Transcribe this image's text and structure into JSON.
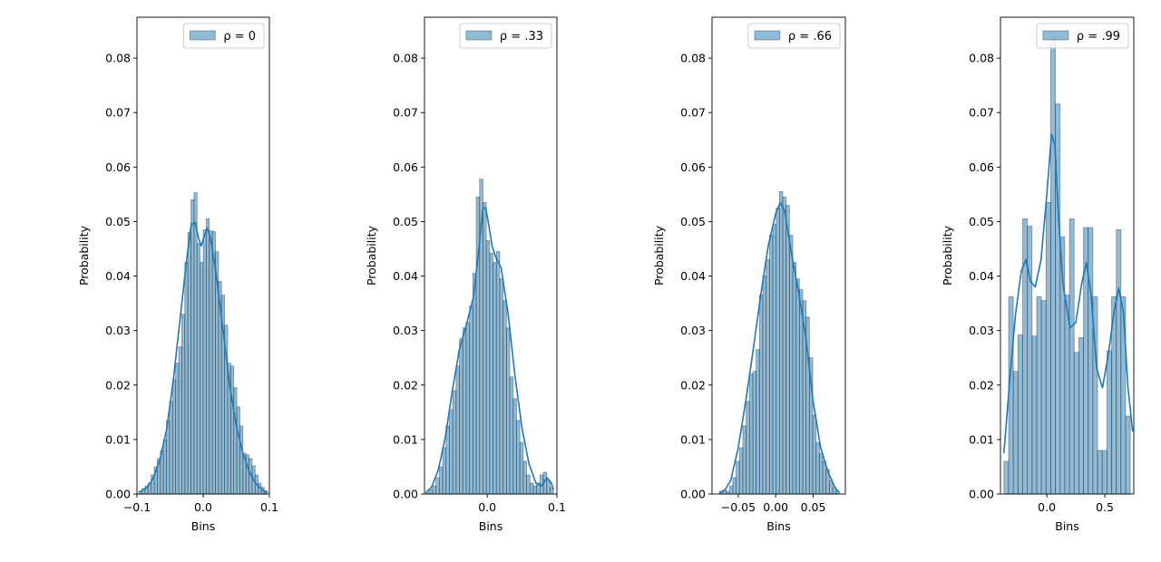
{
  "chart_data": [
    {
      "type": "bar",
      "legend_label": "ρ = 0",
      "legend_placement": "top-right",
      "xlabel": "Bins",
      "ylabel": "Probability",
      "grid": false,
      "xlim": [
        -0.1,
        0.1
      ],
      "ylim": [
        0,
        0.0875
      ],
      "xticks": [
        -0.1,
        0.0,
        0.1
      ],
      "xtick_labels": [
        "−0.1",
        "0.0",
        "0.1"
      ],
      "yticks": [
        0,
        0.01,
        0.02,
        0.03,
        0.04,
        0.05,
        0.06,
        0.07,
        0.08
      ],
      "ytick_labels": [
        "0.00",
        "0.01",
        "0.02",
        "0.03",
        "0.04",
        "0.05",
        "0.06",
        "0.07",
        "0.08"
      ],
      "bin_range": [
        -0.097,
        0.097
      ],
      "values": [
        0.0005,
        0.001,
        0.0015,
        0.002,
        0.0035,
        0.005,
        0.0065,
        0.008,
        0.01,
        0.0135,
        0.017,
        0.021,
        0.024,
        0.027,
        0.033,
        0.0425,
        0.048,
        0.054,
        0.0553,
        0.046,
        0.0425,
        0.0485,
        0.0505,
        0.0483,
        0.0482,
        0.0445,
        0.039,
        0.0365,
        0.031,
        0.024,
        0.0235,
        0.0195,
        0.016,
        0.0125,
        0.0075,
        0.0072,
        0.0065,
        0.0052,
        0.0035,
        0.002,
        0.0012,
        0.0006
      ],
      "kde": [
        [
          -0.097,
          0.0003
        ],
        [
          -0.085,
          0.0012
        ],
        [
          -0.075,
          0.003
        ],
        [
          -0.065,
          0.0065
        ],
        [
          -0.055,
          0.012
        ],
        [
          -0.045,
          0.021
        ],
        [
          -0.035,
          0.032
        ],
        [
          -0.025,
          0.043
        ],
        [
          -0.018,
          0.0495
        ],
        [
          -0.012,
          0.0498
        ],
        [
          -0.007,
          0.047
        ],
        [
          -0.003,
          0.0455
        ],
        [
          0.002,
          0.0475
        ],
        [
          0.006,
          0.0488
        ],
        [
          0.011,
          0.047
        ],
        [
          0.02,
          0.04
        ],
        [
          0.03,
          0.03
        ],
        [
          0.04,
          0.02
        ],
        [
          0.05,
          0.0125
        ],
        [
          0.06,
          0.0075
        ],
        [
          0.07,
          0.004
        ],
        [
          0.08,
          0.0018
        ],
        [
          0.09,
          0.0007
        ],
        [
          0.097,
          0.0002
        ]
      ]
    },
    {
      "type": "bar",
      "legend_label": "ρ = .33",
      "legend_placement": "top-right",
      "xlabel": "Bins",
      "ylabel": "Probability",
      "grid": false,
      "xlim": [
        -0.09,
        0.1
      ],
      "ylim": [
        0,
        0.0875
      ],
      "xticks": [
        0.0,
        0.1
      ],
      "xtick_labels": [
        "0.0",
        "0.1"
      ],
      "yticks": [
        0,
        0.01,
        0.02,
        0.03,
        0.04,
        0.05,
        0.06,
        0.07,
        0.08
      ],
      "ytick_labels": [
        "0.00",
        "0.01",
        "0.02",
        "0.03",
        "0.04",
        "0.05",
        "0.06",
        "0.07",
        "0.08"
      ],
      "bin_range": [
        -0.088,
        0.095
      ],
      "values": [
        0.0003,
        0.0008,
        0.0015,
        0.003,
        0.005,
        0.0085,
        0.0125,
        0.0155,
        0.019,
        0.0235,
        0.0285,
        0.0305,
        0.0315,
        0.0345,
        0.0405,
        0.0545,
        0.0578,
        0.0535,
        0.0465,
        0.0442,
        0.0425,
        0.0445,
        0.0395,
        0.0355,
        0.0305,
        0.0215,
        0.0175,
        0.0135,
        0.0095,
        0.006,
        0.0035,
        0.002,
        0.0015,
        0.002,
        0.0035,
        0.004,
        0.0025,
        0.0012
      ],
      "kde": [
        [
          -0.088,
          0.0003
        ],
        [
          -0.08,
          0.0012
        ],
        [
          -0.07,
          0.0045
        ],
        [
          -0.06,
          0.0105
        ],
        [
          -0.05,
          0.019
        ],
        [
          -0.04,
          0.0265
        ],
        [
          -0.03,
          0.031
        ],
        [
          -0.02,
          0.036
        ],
        [
          -0.012,
          0.045
        ],
        [
          -0.006,
          0.0525
        ],
        [
          -0.002,
          0.0525
        ],
        [
          0.002,
          0.0495
        ],
        [
          0.007,
          0.0455
        ],
        [
          0.012,
          0.0435
        ],
        [
          0.02,
          0.0415
        ],
        [
          0.03,
          0.033
        ],
        [
          0.04,
          0.0215
        ],
        [
          0.05,
          0.012
        ],
        [
          0.06,
          0.0055
        ],
        [
          0.07,
          0.002
        ],
        [
          0.078,
          0.0015
        ],
        [
          0.086,
          0.003
        ],
        [
          0.092,
          0.002
        ],
        [
          0.095,
          0.0008
        ]
      ]
    },
    {
      "type": "bar",
      "legend_label": "ρ = .66",
      "legend_placement": "top-right",
      "xlabel": "Bins",
      "ylabel": "Probability",
      "grid": false,
      "xlim": [
        -0.085,
        0.093
      ],
      "ylim": [
        0,
        0.0875
      ],
      "xticks": [
        -0.05,
        0.0,
        0.05
      ],
      "xtick_labels": [
        "−0.05",
        "0.00",
        "0.05"
      ],
      "yticks": [
        0,
        0.01,
        0.02,
        0.03,
        0.04,
        0.05,
        0.06,
        0.07,
        0.08
      ],
      "ytick_labels": [
        "0.00",
        "0.01",
        "0.02",
        "0.03",
        "0.04",
        "0.05",
        "0.06",
        "0.07",
        "0.08"
      ],
      "bin_range": [
        -0.075,
        0.085
      ],
      "values": [
        0.0005,
        0.0008,
        0.0005,
        0.0015,
        0.003,
        0.006,
        0.0085,
        0.0125,
        0.017,
        0.022,
        0.0225,
        0.0265,
        0.0365,
        0.04,
        0.043,
        0.0475,
        0.0495,
        0.0525,
        0.0555,
        0.0545,
        0.053,
        0.0475,
        0.0425,
        0.0395,
        0.0375,
        0.0355,
        0.0325,
        0.025,
        0.0145,
        0.0095,
        0.0075,
        0.006,
        0.0045,
        0.0025,
        0.0012,
        0.0005
      ],
      "kde": [
        [
          -0.075,
          0.0002
        ],
        [
          -0.068,
          0.0007
        ],
        [
          -0.06,
          0.0025
        ],
        [
          -0.05,
          0.0085
        ],
        [
          -0.04,
          0.017
        ],
        [
          -0.03,
          0.0265
        ],
        [
          -0.02,
          0.0365
        ],
        [
          -0.01,
          0.0455
        ],
        [
          0.0,
          0.0515
        ],
        [
          0.006,
          0.0535
        ],
        [
          0.012,
          0.052
        ],
        [
          0.02,
          0.045
        ],
        [
          0.03,
          0.0375
        ],
        [
          0.04,
          0.029
        ],
        [
          0.05,
          0.017
        ],
        [
          0.06,
          0.0085
        ],
        [
          0.07,
          0.004
        ],
        [
          0.08,
          0.001
        ],
        [
          0.085,
          0.0003
        ]
      ]
    },
    {
      "type": "bar",
      "legend_label": "ρ = .99",
      "legend_placement": "top-right",
      "xlabel": "Bins",
      "ylabel": "Probability",
      "grid": false,
      "xlim": [
        -0.4,
        0.75
      ],
      "ylim": [
        0,
        0.0875
      ],
      "xticks": [
        0.0,
        0.5
      ],
      "xtick_labels": [
        "0.0",
        "0.5"
      ],
      "yticks": [
        0,
        0.01,
        0.02,
        0.03,
        0.04,
        0.05,
        0.06,
        0.07,
        0.08
      ],
      "ytick_labels": [
        "0.00",
        "0.01",
        "0.02",
        "0.03",
        "0.04",
        "0.05",
        "0.06",
        "0.07",
        "0.08"
      ],
      "bin_range": [
        -0.37,
        0.72
      ],
      "values": [
        0.006,
        0.0362,
        0.0225,
        0.0292,
        0.0505,
        0.0492,
        0.029,
        0.0362,
        0.0355,
        0.0535,
        0.0838,
        0.0716,
        0.0472,
        0.0365,
        0.0505,
        0.026,
        0.0287,
        0.0489,
        0.0489,
        0.0362,
        0.008,
        0.008,
        0.0263,
        0.0362,
        0.0485,
        0.0362,
        0.0143
      ],
      "kde": [
        [
          -0.37,
          0.0075
        ],
        [
          -0.32,
          0.021
        ],
        [
          -0.27,
          0.033
        ],
        [
          -0.22,
          0.041
        ],
        [
          -0.18,
          0.043
        ],
        [
          -0.14,
          0.039
        ],
        [
          -0.1,
          0.038
        ],
        [
          -0.05,
          0.043
        ],
        [
          0.0,
          0.055
        ],
        [
          0.04,
          0.066
        ],
        [
          0.07,
          0.064
        ],
        [
          0.1,
          0.051
        ],
        [
          0.14,
          0.0385
        ],
        [
          0.2,
          0.0305
        ],
        [
          0.25,
          0.0315
        ],
        [
          0.3,
          0.0385
        ],
        [
          0.34,
          0.0425
        ],
        [
          0.38,
          0.037
        ],
        [
          0.43,
          0.023
        ],
        [
          0.48,
          0.0195
        ],
        [
          0.53,
          0.0255
        ],
        [
          0.58,
          0.0335
        ],
        [
          0.62,
          0.0378
        ],
        [
          0.66,
          0.0335
        ],
        [
          0.7,
          0.0195
        ],
        [
          0.74,
          0.0115
        ]
      ]
    }
  ]
}
